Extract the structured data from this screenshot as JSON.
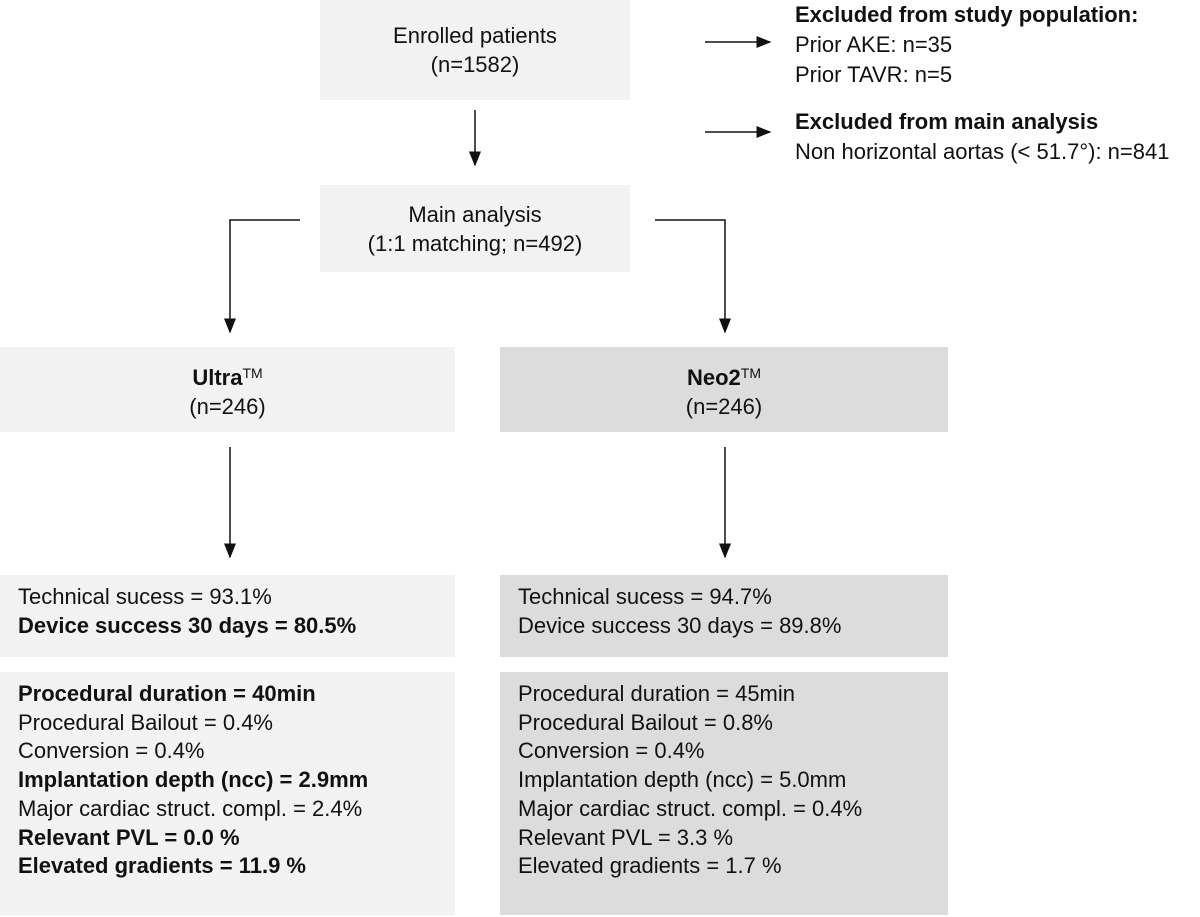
{
  "enrolled": {
    "lines": [
      "Enrolled patients",
      "(n=1582)"
    ]
  },
  "excluded_study": {
    "title": "Excluded from study population:",
    "items": [
      "Prior AKE: n=35",
      "Prior TAVR: n=5"
    ]
  },
  "excluded_main": {
    "title": "Excluded from main analysis",
    "items": [
      "Non horizontal aortas (< 51.7°): n=841"
    ]
  },
  "main_analysis": {
    "lines": [
      "Main analysis",
      "(1:1 matching; n=492)"
    ]
  },
  "groups": [
    {
      "name": "Ultra",
      "mark": "TM",
      "n": "(n=246)",
      "success": [
        {
          "text": "Technical sucess = 93.1%",
          "bold": false
        },
        {
          "text": "Device success 30 days = 80.5%",
          "bold": true
        }
      ],
      "outcomes": [
        {
          "text": "Procedural duration = 40min",
          "bold": true
        },
        {
          "text": "Procedural Bailout = 0.4%",
          "bold": false
        },
        {
          "text": "Conversion = 0.4%",
          "bold": false
        },
        {
          "text": "Implantation depth (ncc) = 2.9mm",
          "bold": true
        },
        {
          "text": "Major cardiac struct. compl. = 2.4%",
          "bold": false
        },
        {
          "text": "Relevant PVL = 0.0 %",
          "bold": true
        },
        {
          "text": "Elevated gradients = 11.9 %",
          "bold": true
        }
      ]
    },
    {
      "name": "Neo2",
      "mark": "TM",
      "n": "(n=246)",
      "success": [
        {
          "text": "Technical sucess = 94.7%",
          "bold": false
        },
        {
          "text": "Device success 30 days = 89.8%",
          "bold": false
        }
      ],
      "outcomes": [
        {
          "text": "Procedural duration = 45min",
          "bold": false
        },
        {
          "text": "Procedural Bailout = 0.8%",
          "bold": false
        },
        {
          "text": "Conversion = 0.4%",
          "bold": false
        },
        {
          "text": "Implantation depth (ncc) = 5.0mm",
          "bold": false
        },
        {
          "text": "Major cardiac struct. compl. = 0.4%",
          "bold": false
        },
        {
          "text": "Relevant PVL = 3.3 %",
          "bold": false
        },
        {
          "text": "Elevated gradients = 1.7 %",
          "bold": false
        }
      ]
    }
  ]
}
